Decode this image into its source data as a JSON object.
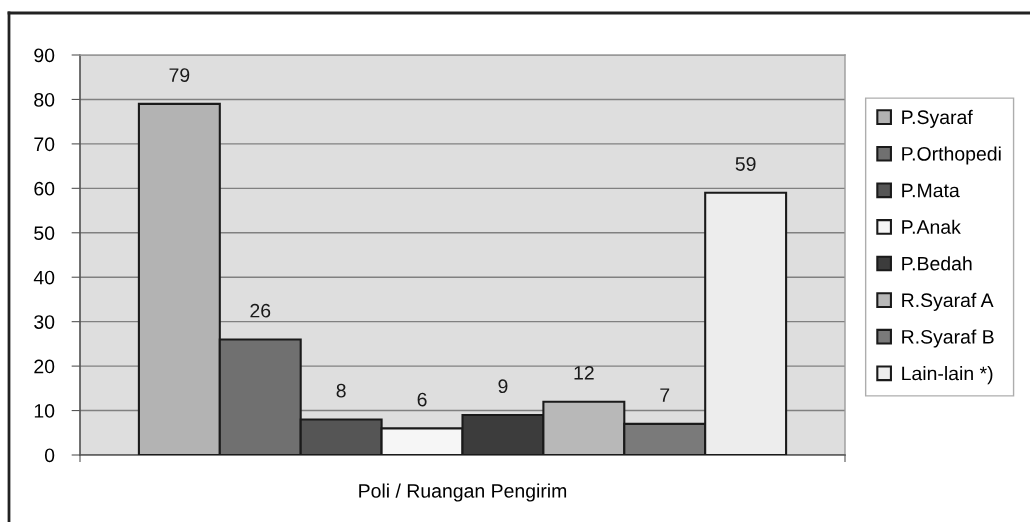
{
  "chart_data": {
    "type": "bar",
    "xlabel": "Poli / Ruangan Pengirim",
    "categories": [
      null
    ],
    "series": [
      {
        "name": "P.Syaraf",
        "color": "#b3b3b3",
        "values": [
          79
        ]
      },
      {
        "name": "P.Orthopedi",
        "color": "#707070",
        "values": [
          26
        ]
      },
      {
        "name": "P.Mata",
        "color": "#555555",
        "values": [
          8
        ]
      },
      {
        "name": "P.Anak",
        "color": "#f6f6f6",
        "values": [
          6
        ]
      },
      {
        "name": "P.Bedah",
        "color": "#3c3c3c",
        "values": [
          9
        ]
      },
      {
        "name": "R.Syaraf A",
        "color": "#b8b8b8",
        "values": [
          12
        ]
      },
      {
        "name": "R.Syaraf B",
        "color": "#7a7a7a",
        "values": [
          7
        ]
      },
      {
        "name": "Lain-lain *)",
        "color": "#ededed",
        "values": [
          59
        ]
      }
    ],
    "ylim": [
      0,
      90
    ],
    "yticks": [
      0,
      10,
      20,
      30,
      40,
      50,
      60,
      70,
      80,
      90
    ],
    "grid": "y",
    "legend": "right",
    "data_labels": true
  }
}
